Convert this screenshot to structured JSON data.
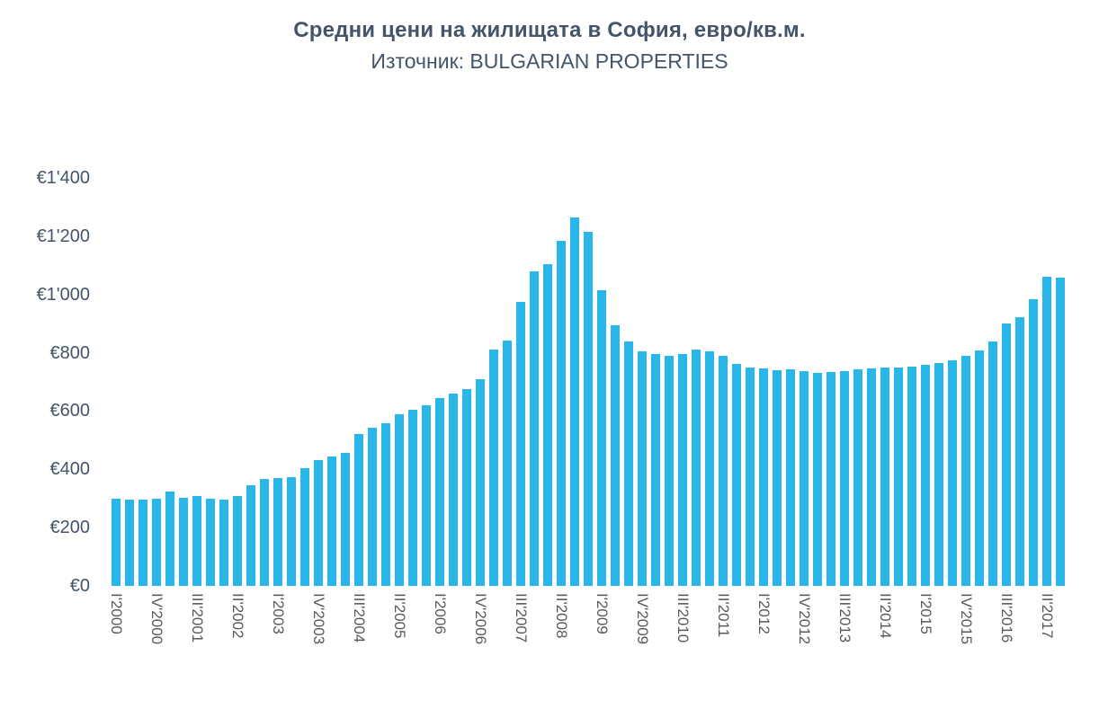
{
  "page": {
    "background_color": "#ffffff"
  },
  "chart_data": {
    "type": "bar",
    "title": "Средни цени на жилищата в София, евро/кв.м.",
    "subtitle": "Източник: BULGARIAN PROPERTIES",
    "source": "BULGARIAN PROPERTIES",
    "bar_color": "#29b6e8",
    "title_color": "#44546a",
    "ytick_color": "#44546a",
    "xtick_color": "#595959",
    "ylabel": "",
    "xlabel": "",
    "ylim": [
      0,
      1400
    ],
    "ytick_interval": 200,
    "grid": "off",
    "legend": "none",
    "ytick_labels_bottom_up": [
      "€0",
      "€200",
      "€400",
      "€600",
      "€800",
      "€1'000",
      "€1'200",
      "€1'400"
    ],
    "x_label_every": 3,
    "xtick_labels_shown": [
      "I'2000",
      "IV'2000",
      "III'2001",
      "II'2002",
      "I'2003",
      "IV'2003",
      "III'2004",
      "II'2005",
      "I'2006",
      "IV'2006",
      "III'2007",
      "II'2008",
      "I'2009",
      "IV'2009",
      "III'2010",
      "II'2011",
      "I'2012",
      "IV'2012",
      "III'2013",
      "II'2014",
      "I'2015",
      "IV'2015",
      "III'2016",
      "II'2017"
    ],
    "categories": [
      "I'2000",
      "II'2000",
      "III'2000",
      "IV'2000",
      "I'2001",
      "II'2001",
      "III'2001",
      "IV'2001",
      "I'2002",
      "II'2002",
      "III'2002",
      "IV'2002",
      "I'2003",
      "II'2003",
      "III'2003",
      "IV'2003",
      "I'2004",
      "II'2004",
      "III'2004",
      "IV'2004",
      "I'2005",
      "II'2005",
      "III'2005",
      "IV'2005",
      "I'2006",
      "II'2006",
      "III'2006",
      "IV'2006",
      "I'2007",
      "II'2007",
      "III'2007",
      "IV'2007",
      "I'2008",
      "II'2008",
      "III'2008",
      "IV'2008",
      "I'2009",
      "II'2009",
      "III'2009",
      "IV'2009",
      "I'2010",
      "II'2010",
      "III'2010",
      "IV'2010",
      "I'2011",
      "II'2011",
      "III'2011",
      "IV'2011",
      "I'2012",
      "II'2012",
      "III'2012",
      "IV'2012",
      "I'2013",
      "II'2013",
      "III'2013",
      "IV'2013",
      "I'2014",
      "II'2014",
      "III'2014",
      "IV'2014",
      "I'2015",
      "II'2015",
      "III'2015",
      "IV'2015",
      "I'2016",
      "II'2016",
      "III'2016",
      "IV'2016",
      "I'2017",
      "II'2017",
      "III'2017"
    ],
    "values": [
      300,
      297,
      296,
      300,
      323,
      301,
      308,
      299,
      297,
      309,
      345,
      367,
      370,
      374,
      404,
      431,
      443,
      458,
      520,
      543,
      557,
      588,
      604,
      621,
      645,
      660,
      676,
      710,
      810,
      843,
      975,
      1080,
      1105,
      1185,
      1265,
      1215,
      1015,
      895,
      840,
      805,
      795,
      790,
      795,
      812,
      806,
      790,
      763,
      748,
      745,
      740,
      742,
      738,
      730,
      734,
      738,
      742,
      745,
      748,
      750,
      753,
      758,
      765,
      775,
      790,
      808,
      838,
      900,
      922,
      985,
      1060,
      1058
    ]
  }
}
